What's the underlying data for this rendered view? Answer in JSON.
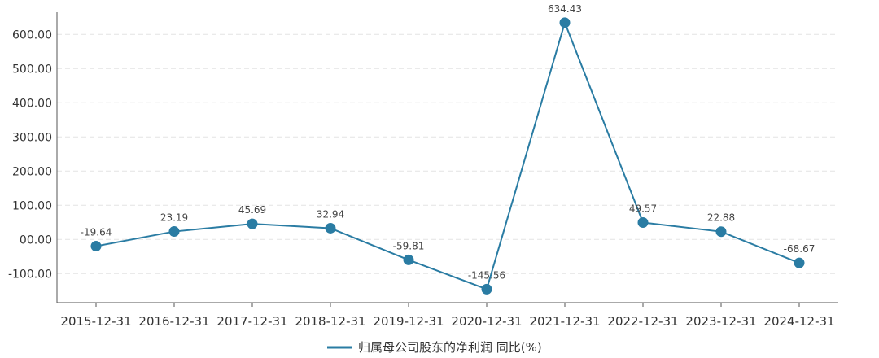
{
  "chart_data": {
    "type": "line",
    "title": "",
    "xlabel": "",
    "ylabel": "",
    "categories": [
      "2015-12-31",
      "2016-12-31",
      "2017-12-31",
      "2018-12-31",
      "2019-12-31",
      "2020-12-31",
      "2021-12-31",
      "2022-12-31",
      "2023-12-31",
      "2024-12-31"
    ],
    "series": [
      {
        "name": "归属母公司股东的净利润 同比(%)",
        "values": [
          -19.64,
          23.19,
          45.69,
          32.94,
          -59.81,
          -145.56,
          634.43,
          49.57,
          22.88,
          -68.67
        ],
        "labels": [
          "-19.64",
          "23.19",
          "45.69",
          "32.94",
          "-59.81",
          "-145.56",
          "634.43",
          "49.57",
          "22.88",
          "-68.67"
        ],
        "color": "#2a7ca3"
      }
    ],
    "yticks": [
      -100,
      0,
      100,
      200,
      300,
      400,
      500,
      600
    ],
    "ytick_labels": [
      "-100.00",
      "00.00",
      "100.00",
      "200.00",
      "300.00",
      "400.00",
      "500.00",
      "600.00"
    ],
    "ylim": [
      -185,
      665
    ],
    "grid": true,
    "legend_position": "bottom-center",
    "colors": {
      "line": "#2a7ca3",
      "grid": "#e3e3e3",
      "axis": "#555555",
      "text": "#333333"
    }
  }
}
